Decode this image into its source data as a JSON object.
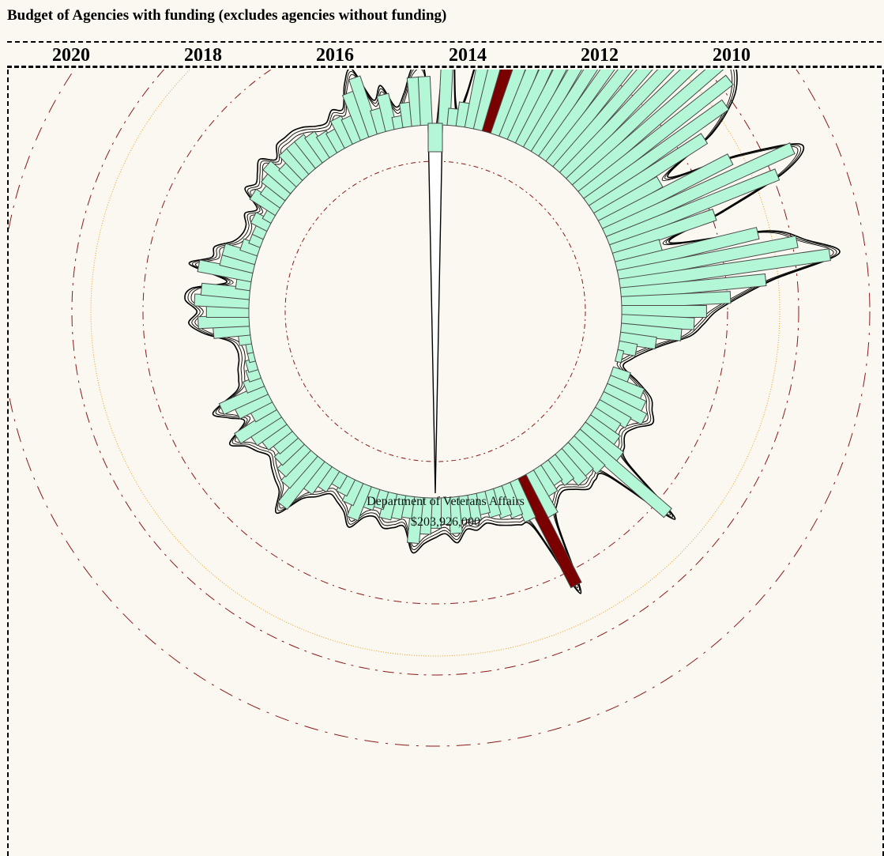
{
  "title": "Budget of Agencies with funding (excludes agencies without funding)",
  "years": [
    "2020",
    "2018",
    "2016",
    "2014",
    "2012",
    "2010"
  ],
  "selected": {
    "agency": "Department of Veterans Affairs",
    "amount": "$203,926,000"
  },
  "colors": {
    "background": "#faf8f0",
    "bar_fill": "#b4f7d7",
    "bar_stroke": "#4a4a4a",
    "highlight_fill": "#7a0000",
    "ring_dashdot": "#8b1a1a",
    "ring_outer": "#f0a020",
    "outline": "#000000"
  },
  "chart_data": {
    "type": "radial-bar",
    "inner_radius_units": 100,
    "series_name": "",
    "values": [
      0,
      140,
      14,
      20,
      110,
      130,
      160,
      300,
      340,
      230,
      220,
      200,
      200,
      190,
      180,
      170,
      165,
      150,
      160,
      155,
      140,
      110,
      60,
      120,
      170,
      150,
      90,
      40,
      120,
      150,
      175,
      120,
      90,
      70,
      60,
      50,
      30,
      15,
      5,
      0,
      15,
      30,
      35,
      40,
      30,
      25,
      30,
      40,
      100,
      35,
      30,
      32,
      25,
      20,
      25,
      40,
      100,
      35,
      28,
      25,
      22,
      18,
      22,
      20,
      30,
      22,
      25,
      30,
      38,
      18,
      20,
      22,
      15,
      18,
      30,
      20,
      15,
      12,
      20,
      28,
      50,
      35,
      30,
      25,
      20,
      25,
      30,
      40,
      20,
      30,
      40,
      15,
      10,
      8,
      5,
      5,
      10,
      30,
      42,
      35,
      45,
      40,
      12,
      45,
      28,
      28,
      15,
      10,
      10,
      15,
      8,
      25,
      20,
      25,
      30,
      20,
      28,
      28,
      28,
      25,
      20,
      18,
      25,
      22,
      40,
      50,
      20,
      30,
      10,
      20,
      40,
      40
    ],
    "highlighted_indices": [
      6,
      56
    ],
    "selected_index": 0
  }
}
